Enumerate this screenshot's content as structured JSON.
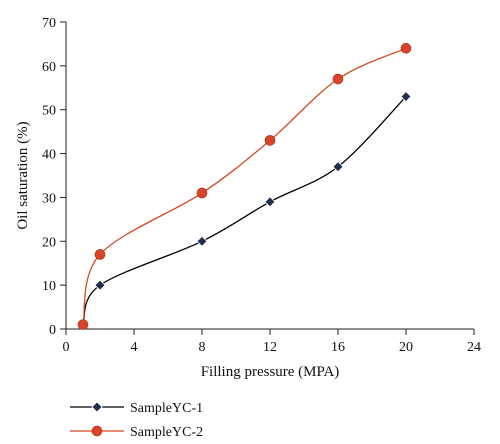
{
  "chart_data": {
    "type": "line",
    "xlabel": "Filling pressure (MPA)",
    "ylabel": "Oil saturation (%)",
    "xlim": [
      0,
      24
    ],
    "ylim": [
      0,
      70
    ],
    "xticks": [
      "0",
      "4",
      "8",
      "12",
      "16",
      "20",
      "24"
    ],
    "yticks": [
      "0",
      "10",
      "20",
      "30",
      "40",
      "50",
      "60",
      "70"
    ],
    "grid": false,
    "legend_position": "bottom-left",
    "series": [
      {
        "name": "SampleYC-1",
        "color": "#000000",
        "marker": "diamond",
        "marker_color": "#1f2d4f",
        "x": [
          1,
          2,
          8,
          12,
          16,
          20
        ],
        "y": [
          1,
          10,
          20,
          29,
          37,
          53
        ]
      },
      {
        "name": "SampleYC-2",
        "color": "#d4481f",
        "marker": "circle",
        "marker_color": "#d9452a",
        "x": [
          1,
          2,
          8,
          12,
          16,
          20
        ],
        "y": [
          1,
          17,
          31,
          43,
          57,
          64
        ]
      }
    ]
  }
}
